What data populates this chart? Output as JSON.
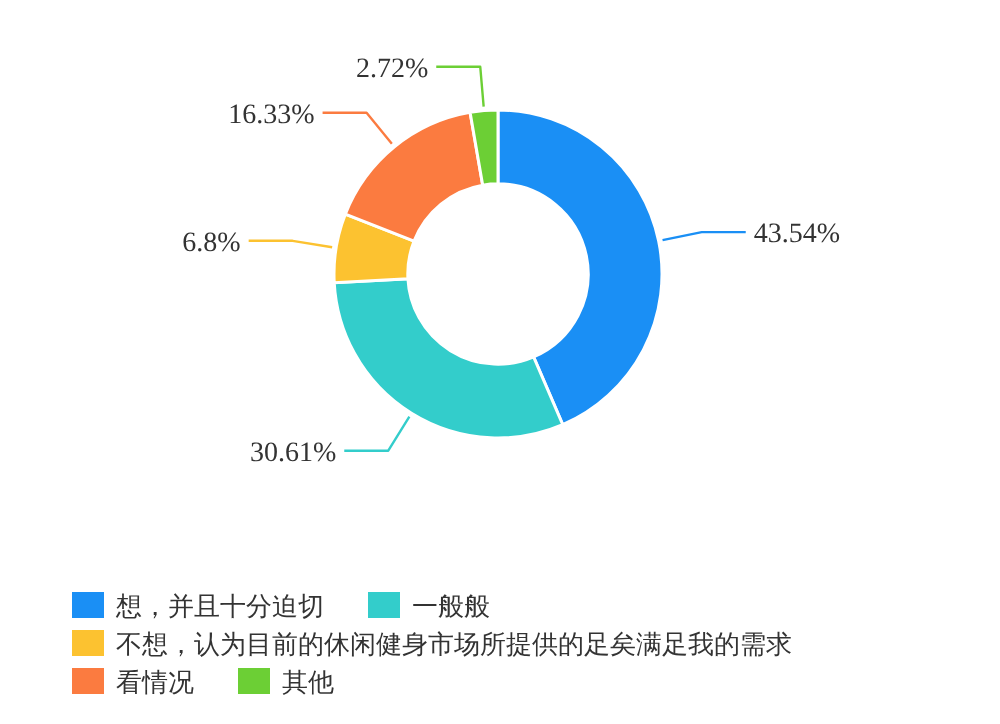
{
  "chart_data": {
    "type": "donut",
    "categories": [
      "想，并且十分迫切",
      "一般般",
      "不想，认为目前的休闲健身市场所提供的足矣满足我的需求",
      "看情况",
      "其他"
    ],
    "values": [
      43.54,
      30.61,
      6.8,
      16.33,
      2.72
    ],
    "colors": [
      "#1a8ff5",
      "#33cdcb",
      "#fcc230",
      "#fb7b40",
      "#6ccf35"
    ],
    "value_labels": [
      "43.54%",
      "30.61%",
      "6.8%",
      "16.33%",
      "2.72%"
    ],
    "legend": "bottom"
  }
}
